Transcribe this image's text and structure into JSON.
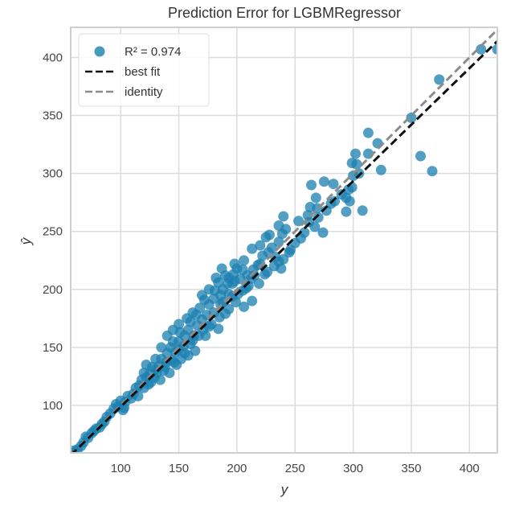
{
  "chart_data": {
    "type": "scatter",
    "title": "Prediction Error for LGBMRegressor",
    "xlabel": "y",
    "ylabel": "ŷ",
    "xlim": [
      57,
      424
    ],
    "ylim": [
      59,
      426
    ],
    "xticks": [
      100,
      150,
      200,
      250,
      300,
      350,
      400
    ],
    "yticks": [
      100,
      150,
      200,
      250,
      300,
      350,
      400
    ],
    "grid": true,
    "legend": {
      "position": "upper left",
      "entries": [
        {
          "label": "R² = 0.974",
          "kind": "marker",
          "color": "#1a7fb0"
        },
        {
          "label": "best fit",
          "kind": "dashed-line",
          "color": "#111111"
        },
        {
          "label": "identity",
          "kind": "dashed-line",
          "color": "#8c8c8c"
        }
      ]
    },
    "r2": 0.974,
    "best_fit": {
      "slope": 0.973,
      "intercept": 1.5
    },
    "identity": {
      "slope": 1,
      "intercept": 0
    },
    "marker_color": "#1a7fb0",
    "points": [
      [
        350,
        348
      ],
      [
        313,
        335
      ],
      [
        321,
        326
      ],
      [
        302,
        317
      ],
      [
        313,
        317
      ],
      [
        299,
        309
      ],
      [
        303,
        308
      ],
      [
        324,
        303
      ],
      [
        358,
        315
      ],
      [
        368,
        302
      ],
      [
        264,
        290
      ],
      [
        275,
        293
      ],
      [
        283,
        291
      ],
      [
        299,
        288
      ],
      [
        268,
        279
      ],
      [
        281,
        274
      ],
      [
        294,
        279
      ],
      [
        297,
        276
      ],
      [
        294,
        267
      ],
      [
        308,
        268
      ],
      [
        269,
        270
      ],
      [
        267,
        254
      ],
      [
        274,
        249
      ],
      [
        263,
        271
      ],
      [
        261,
        264
      ],
      [
        253,
        259
      ],
      [
        242,
        252
      ],
      [
        236,
        241
      ],
      [
        239,
        248
      ],
      [
        245,
        232
      ],
      [
        225,
        245
      ],
      [
        230,
        236
      ],
      [
        236,
        224
      ],
      [
        227,
        232
      ],
      [
        232,
        220
      ],
      [
        222,
        229
      ],
      [
        220,
        222
      ],
      [
        224,
        213
      ],
      [
        214,
        217
      ],
      [
        212,
        209
      ],
      [
        218,
        221
      ],
      [
        209,
        212
      ],
      [
        205,
        217
      ],
      [
        200,
        218
      ],
      [
        197,
        213
      ],
      [
        196,
        205
      ],
      [
        190,
        212
      ],
      [
        192,
        205
      ],
      [
        188,
        200
      ],
      [
        184,
        206
      ],
      [
        181,
        199
      ],
      [
        196,
        194
      ],
      [
        201,
        196
      ],
      [
        205,
        199
      ],
      [
        210,
        203
      ],
      [
        213,
        190
      ],
      [
        206,
        185
      ],
      [
        199,
        189
      ],
      [
        193,
        183
      ],
      [
        188,
        189
      ],
      [
        186,
        195
      ],
      [
        180,
        192
      ],
      [
        176,
        187
      ],
      [
        172,
        191
      ],
      [
        168,
        184
      ],
      [
        174,
        178
      ],
      [
        178,
        170
      ],
      [
        185,
        176
      ],
      [
        190,
        179
      ],
      [
        184,
        166
      ],
      [
        176,
        168
      ],
      [
        170,
        174
      ],
      [
        165,
        178
      ],
      [
        160,
        172
      ],
      [
        158,
        165
      ],
      [
        163,
        160
      ],
      [
        167,
        160
      ],
      [
        171,
        165
      ],
      [
        155,
        160
      ],
      [
        151,
        163
      ],
      [
        150,
        155
      ],
      [
        154,
        151
      ],
      [
        160,
        153
      ],
      [
        164,
        147
      ],
      [
        158,
        143
      ],
      [
        152,
        140
      ],
      [
        147,
        146
      ],
      [
        143,
        150
      ],
      [
        140,
        145
      ],
      [
        144,
        139
      ],
      [
        148,
        135
      ],
      [
        139,
        137
      ],
      [
        135,
        140
      ],
      [
        133,
        134
      ],
      [
        137,
        130
      ],
      [
        130,
        131
      ],
      [
        127,
        133
      ],
      [
        125,
        127
      ],
      [
        129,
        124
      ],
      [
        122,
        124
      ],
      [
        120,
        128
      ],
      [
        118,
        122
      ],
      [
        116,
        117
      ],
      [
        120,
        115
      ],
      [
        124,
        118
      ],
      [
        113,
        115
      ],
      [
        111,
        110
      ],
      [
        115,
        108
      ],
      [
        109,
        106
      ],
      [
        106,
        108
      ],
      [
        104,
        103
      ],
      [
        100,
        104
      ],
      [
        103,
        98
      ],
      [
        98,
        99
      ],
      [
        96,
        101
      ],
      [
        102,
        96
      ],
      [
        94,
        97
      ],
      [
        91,
        93
      ],
      [
        88,
        90
      ],
      [
        86,
        86
      ],
      [
        84,
        84
      ],
      [
        82,
        81
      ],
      [
        79,
        80
      ],
      [
        77,
        78
      ],
      [
        75,
        76
      ],
      [
        72,
        72
      ],
      [
        70,
        73
      ],
      [
        68,
        68
      ],
      [
        66,
        65
      ],
      [
        63,
        62
      ],
      [
        60,
        61
      ],
      [
        58,
        59
      ],
      [
        145,
        155
      ],
      [
        150,
        148
      ],
      [
        155,
        145
      ],
      [
        162,
        156
      ],
      [
        166,
        169
      ],
      [
        173,
        160
      ],
      [
        180,
        180
      ],
      [
        186,
        187
      ],
      [
        193,
        196
      ],
      [
        198,
        207
      ],
      [
        203,
        209
      ],
      [
        208,
        201
      ],
      [
        215,
        212
      ],
      [
        219,
        205
      ],
      [
        226,
        215
      ],
      [
        233,
        228
      ],
      [
        238,
        218
      ],
      [
        240,
        226
      ],
      [
        246,
        234
      ],
      [
        250,
        240
      ],
      [
        255,
        244
      ],
      [
        258,
        249
      ],
      [
        262,
        258
      ],
      [
        270,
        262
      ],
      [
        277,
        268
      ],
      [
        284,
        276
      ],
      [
        290,
        282
      ],
      [
        296,
        286
      ],
      [
        300,
        298
      ],
      [
        305,
        300
      ],
      [
        410,
        407
      ],
      [
        424,
        407
      ],
      [
        374,
        381
      ],
      [
        122,
        135
      ],
      [
        126,
        120
      ],
      [
        131,
        128
      ],
      [
        134,
        122
      ],
      [
        138,
        133
      ],
      [
        142,
        128
      ],
      [
        146,
        137
      ],
      [
        140,
        160
      ],
      [
        135,
        150
      ],
      [
        130,
        140
      ],
      [
        145,
        165
      ],
      [
        157,
        175
      ],
      [
        150,
        170
      ],
      [
        162,
        180
      ],
      [
        170,
        195
      ],
      [
        176,
        200
      ],
      [
        182,
        210
      ],
      [
        187,
        218
      ],
      [
        193,
        210
      ],
      [
        198,
        222
      ],
      [
        206,
        225
      ],
      [
        213,
        235
      ],
      [
        220,
        238
      ],
      [
        228,
        247
      ],
      [
        236,
        255
      ],
      [
        240,
        263
      ]
    ]
  }
}
